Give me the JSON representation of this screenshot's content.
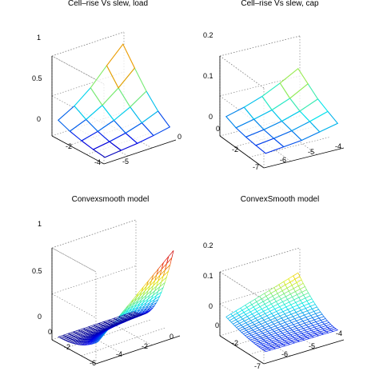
{
  "chart_data": [
    {
      "type": "surface3d",
      "title": "Cell–rise Vs slew, load",
      "x_ticks": [
        "-4",
        "-2"
      ],
      "y_ticks": [
        "-5",
        "0"
      ],
      "z_ticks": [
        "0",
        "0.5",
        "1"
      ],
      "zlim": [
        0,
        1
      ],
      "mesh": "coarse",
      "x": [
        -4,
        -3.5,
        -3,
        -2.5,
        -2
      ],
      "y": [
        -6,
        -4.5,
        -3,
        -1.5,
        0
      ],
      "z": [
        [
          0.05,
          0.07,
          0.09,
          0.12,
          0.16
        ],
        [
          0.07,
          0.1,
          0.14,
          0.2,
          0.28
        ],
        [
          0.1,
          0.15,
          0.22,
          0.32,
          0.45
        ],
        [
          0.14,
          0.22,
          0.33,
          0.48,
          0.66
        ],
        [
          0.2,
          0.31,
          0.47,
          0.68,
          0.88
        ]
      ]
    },
    {
      "type": "surface3d",
      "title": "Cell–rise Vs slew, cap",
      "x_ticks": [
        "-7",
        "-6",
        "-5",
        "-4"
      ],
      "y_ticks": [
        "-2",
        "0"
      ],
      "z_ticks": [
        "0",
        "0.1",
        "0.2"
      ],
      "zlim": [
        0,
        0.2
      ],
      "mesh": "coarse",
      "x": [
        -7,
        -6.25,
        -5.5,
        -4.75,
        -4
      ],
      "y": [
        -3,
        -2.25,
        -1.5,
        -0.75,
        0
      ],
      "z": [
        [
          0.03,
          0.035,
          0.04,
          0.05,
          0.06
        ],
        [
          0.032,
          0.038,
          0.046,
          0.058,
          0.072
        ],
        [
          0.035,
          0.042,
          0.052,
          0.066,
          0.085
        ],
        [
          0.04,
          0.05,
          0.062,
          0.08,
          0.105
        ],
        [
          0.05,
          0.062,
          0.078,
          0.1,
          0.125
        ]
      ]
    },
    {
      "type": "surface3d",
      "title": "Convexsmooth model",
      "x_ticks": [
        "-6",
        "-4",
        "-2",
        "0"
      ],
      "y_ticks": [
        "-2",
        "0"
      ],
      "z_ticks": [
        "0",
        "0.5",
        "1"
      ],
      "zlim": [
        0,
        1
      ],
      "mesh": "fine",
      "x": [
        -6,
        0
      ],
      "y": [
        -3,
        0
      ],
      "z_function": "0.03 + 0.9 * (1 - t)^2.4 * (0.2 + 0.8 * u), t from x, u from y",
      "colorscale": "jet"
    },
    {
      "type": "surface3d",
      "title": "ConvexSmooth model",
      "x_ticks": [
        "-7",
        "-6",
        "-5",
        "-4"
      ],
      "y_ticks": [
        "-2",
        "0"
      ],
      "z_ticks": [
        "0",
        "0.1",
        "0.2"
      ],
      "zlim": [
        0,
        0.2
      ],
      "mesh": "fine",
      "x": [
        -7,
        -4
      ],
      "y": [
        -3,
        0
      ],
      "z_function": "0.03 + 0.1 * t^1.8 * (0.3 + 0.7 * u), t from x, u from y",
      "colorscale": "jet"
    }
  ]
}
